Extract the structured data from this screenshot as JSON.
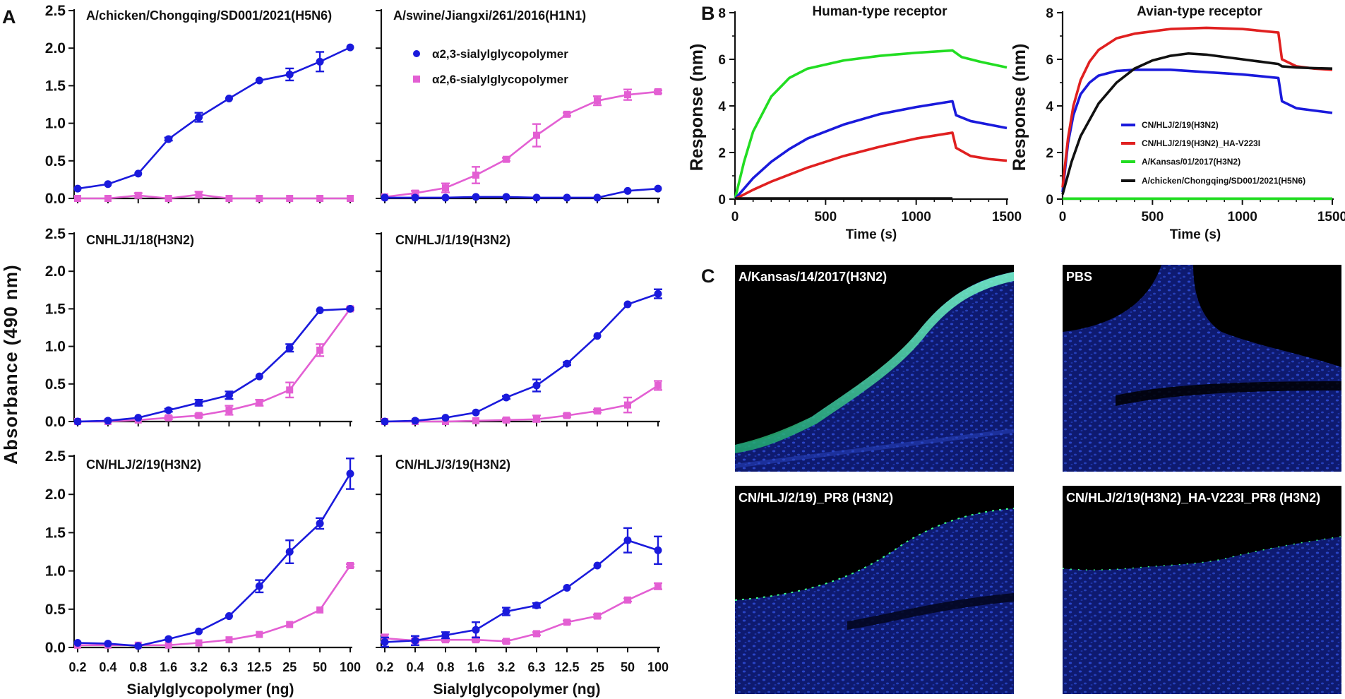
{
  "panel_letters": {
    "a": "A",
    "b": "B",
    "c": "C"
  },
  "chart_data": [
    {
      "type": "line",
      "panel": "A",
      "shared_y_label": "Absorbance (490 nm)",
      "shared_x_label": "Sialylglycopolymer (ng)",
      "x_categories": [
        "0.2",
        "0.4",
        "0.8",
        "1.6",
        "3.2",
        "6.3",
        "12.5",
        "25",
        "50",
        "100"
      ],
      "legend": [
        {
          "name": "α2,3-sialylglycopolymer",
          "color": "#1a1adc",
          "marker": "circle"
        },
        {
          "name": "α2,6-sialylglycopolymer",
          "color": "#e35fd3",
          "marker": "square"
        }
      ],
      "subplots": [
        {
          "title": "A/chicken/Chongqing/SD001/2021(H5N6)",
          "ylim": [
            0,
            2.5
          ],
          "yticks": [
            "0.0",
            "0.5",
            "1.0",
            "1.5",
            "2.0",
            "2.5"
          ],
          "show_x_ticks": false,
          "series": [
            {
              "name": "α2,3-sialylglycopolymer",
              "values": [
                0.13,
                0.19,
                0.33,
                0.79,
                1.08,
                1.33,
                1.57,
                1.65,
                1.82,
                2.01
              ],
              "errors": [
                0.01,
                0.01,
                0.01,
                0.02,
                0.06,
                0.01,
                0.01,
                0.08,
                0.13,
                0.01
              ]
            },
            {
              "name": "α2,6-sialylglycopolymer",
              "values": [
                0.0,
                0.0,
                0.04,
                0.0,
                0.05,
                0.0,
                0.0,
                0.0,
                0.0,
                0.0
              ],
              "errors": [
                0,
                0,
                0.03,
                0,
                0.04,
                0,
                0,
                0,
                0,
                0
              ]
            }
          ]
        },
        {
          "title": "A/swine/Jiangxi/261/2016(H1N1)",
          "ylim": [
            0,
            2.5
          ],
          "show_y_labels": false,
          "show_x_ticks": false,
          "series": [
            {
              "name": "α2,3-sialylglycopolymer",
              "values": [
                0.01,
                0.01,
                0.01,
                0.02,
                0.02,
                0.01,
                0.01,
                0.01,
                0.1,
                0.13
              ],
              "errors": [
                0,
                0,
                0,
                0,
                0,
                0,
                0,
                0,
                0,
                0
              ]
            },
            {
              "name": "α2,6-sialylglycopolymer",
              "values": [
                0.02,
                0.07,
                0.14,
                0.31,
                0.52,
                0.84,
                1.12,
                1.3,
                1.38,
                1.42
              ],
              "errors": [
                0.01,
                0.03,
                0.06,
                0.11,
                0.02,
                0.15,
                0.02,
                0.06,
                0.07,
                0.02
              ]
            }
          ]
        },
        {
          "title": "CNHLJ1/18(H3N2)",
          "ylim": [
            0,
            2.5
          ],
          "yticks": [
            "0.0",
            "0.5",
            "1.0",
            "1.5",
            "2.0",
            "2.5"
          ],
          "show_x_ticks": false,
          "series": [
            {
              "name": "α2,3-sialylglycopolymer",
              "values": [
                0.0,
                0.01,
                0.05,
                0.15,
                0.25,
                0.35,
                0.6,
                0.98,
                1.48,
                1.5
              ],
              "errors": [
                0.01,
                0.01,
                0.01,
                0.02,
                0.04,
                0.05,
                0.01,
                0.05,
                0.01,
                0.01
              ]
            },
            {
              "name": "α2,6-sialylglycopolymer",
              "values": [
                0.0,
                0.0,
                0.02,
                0.05,
                0.08,
                0.15,
                0.25,
                0.42,
                0.95,
                1.5
              ],
              "errors": [
                0,
                0.02,
                0.01,
                0.02,
                0.02,
                0.06,
                0.04,
                0.1,
                0.08,
                0.02
              ]
            }
          ]
        },
        {
          "title": "CN/HLJ/1/19(H3N2)",
          "ylim": [
            0,
            2.5
          ],
          "show_y_labels": false,
          "show_x_ticks": false,
          "series": [
            {
              "name": "α2,3-sialylglycopolymer",
              "values": [
                0.0,
                0.01,
                0.05,
                0.12,
                0.32,
                0.48,
                0.77,
                1.14,
                1.56,
                1.7
              ],
              "errors": [
                0,
                0,
                0.01,
                0.01,
                0.02,
                0.08,
                0.02,
                0.01,
                0.01,
                0.06
              ]
            },
            {
              "name": "α2,6-sialylglycopolymer",
              "values": [
                0.0,
                0.0,
                0.0,
                0.01,
                0.02,
                0.03,
                0.08,
                0.14,
                0.22,
                0.48
              ],
              "errors": [
                0,
                0,
                0,
                0,
                0.02,
                0.05,
                0.02,
                0.02,
                0.1,
                0.06
              ]
            }
          ]
        },
        {
          "title": "CN/HLJ/2/19(H3N2)",
          "ylim": [
            0,
            2.5
          ],
          "yticks": [
            "0.0",
            "0.5",
            "1.0",
            "1.5",
            "2.0",
            "2.5"
          ],
          "show_x_ticks": true,
          "series": [
            {
              "name": "α2,3-sialylglycopolymer",
              "values": [
                0.06,
                0.05,
                0.02,
                0.11,
                0.21,
                0.41,
                0.8,
                1.25,
                1.62,
                2.27
              ],
              "errors": [
                0.01,
                0.01,
                0.01,
                0.01,
                0.01,
                0.01,
                0.08,
                0.15,
                0.07,
                0.2
              ]
            },
            {
              "name": "α2,6-sialylglycopolymer",
              "values": [
                0.03,
                0.03,
                0.03,
                0.03,
                0.06,
                0.1,
                0.17,
                0.3,
                0.49,
                1.07
              ],
              "errors": [
                0,
                0,
                0,
                0,
                0.01,
                0.01,
                0.01,
                0.01,
                0.01,
                0.02
              ]
            }
          ]
        },
        {
          "title": "CN/HLJ/3/19(H3N2)",
          "ylim": [
            0,
            2.5
          ],
          "show_y_labels": false,
          "show_x_ticks": true,
          "series": [
            {
              "name": "α2,3-sialylglycopolymer",
              "values": [
                0.07,
                0.09,
                0.16,
                0.23,
                0.47,
                0.55,
                0.78,
                1.07,
                1.4,
                1.27
              ],
              "errors": [
                0.06,
                0.06,
                0.04,
                0.1,
                0.05,
                0.03,
                0.01,
                0.01,
                0.16,
                0.18
              ]
            },
            {
              "name": "α2,6-sialylglycopolymer",
              "values": [
                0.12,
                0.09,
                0.1,
                0.1,
                0.08,
                0.18,
                0.33,
                0.41,
                0.62,
                0.8
              ],
              "errors": [
                0.05,
                0.02,
                0.02,
                0.02,
                0.02,
                0.02,
                0.02,
                0.02,
                0.02,
                0.04
              ]
            }
          ]
        }
      ]
    },
    {
      "type": "line",
      "panel": "B",
      "title": "Human-type receptor",
      "xlabel": "Time (s)",
      "ylabel": "Response (nm)",
      "xlim": [
        0,
        1500
      ],
      "ylim": [
        0,
        8
      ],
      "xticks": [
        "0",
        "500",
        "1000",
        "1500"
      ],
      "yticks": [
        "0",
        "2",
        "4",
        "6",
        "8"
      ],
      "series": [
        {
          "name": "A/Kansas/01/2017(H3N2)",
          "color": "#22dd22",
          "x": [
            0,
            50,
            100,
            200,
            300,
            400,
            600,
            800,
            1000,
            1200,
            1250,
            1350,
            1500
          ],
          "y": [
            0,
            1.6,
            2.9,
            4.4,
            5.2,
            5.6,
            5.95,
            6.15,
            6.28,
            6.38,
            6.1,
            5.9,
            5.65
          ]
        },
        {
          "name": "CN/HLJ/2/19(H3N2)",
          "color": "#1a1adc",
          "x": [
            0,
            100,
            200,
            300,
            400,
            600,
            800,
            1000,
            1200,
            1220,
            1300,
            1400,
            1500
          ],
          "y": [
            0,
            0.9,
            1.6,
            2.15,
            2.6,
            3.2,
            3.65,
            3.95,
            4.2,
            3.6,
            3.35,
            3.2,
            3.05
          ]
        },
        {
          "name": "CN/HLJ/2/19(H3N2)_HA-V223I",
          "color": "#e02020",
          "x": [
            0,
            100,
            200,
            300,
            400,
            600,
            800,
            1000,
            1200,
            1220,
            1300,
            1400,
            1500
          ],
          "y": [
            0,
            0.4,
            0.75,
            1.05,
            1.35,
            1.85,
            2.25,
            2.6,
            2.85,
            2.2,
            1.85,
            1.72,
            1.65
          ]
        },
        {
          "name": "A/chicken/Chongqing/SD001/2021(H5N6)",
          "color": "#111111",
          "x": [
            0,
            1200
          ],
          "y": [
            0.03,
            0.03
          ]
        }
      ]
    },
    {
      "type": "line",
      "panel": "B",
      "title": "Avian-type receptor",
      "xlabel": "Time (s)",
      "ylabel": "Response (nm)",
      "xlim": [
        0,
        1500
      ],
      "ylim": [
        0,
        8
      ],
      "xticks": [
        "0",
        "500",
        "1000",
        "1500"
      ],
      "yticks": [
        "0",
        "2",
        "4",
        "6",
        "8"
      ],
      "legend": [
        {
          "name": "CN/HLJ/2/19(H3N2)",
          "color": "#1a1adc"
        },
        {
          "name": "CN/HLJ/2/19(H3N2)_HA-V223I",
          "color": "#e02020"
        },
        {
          "name": "A/Kansas/01/2017(H3N2)",
          "color": "#22dd22"
        },
        {
          "name": "A/chicken/Chongqing/SD001/2021(H5N6)",
          "color": "#111111"
        }
      ],
      "series": [
        {
          "name": "CN/HLJ/2/19(H3N2)",
          "color": "#1a1adc",
          "x": [
            0,
            30,
            60,
            100,
            150,
            200,
            300,
            400,
            600,
            800,
            1000,
            1200,
            1220,
            1300,
            1400,
            1500
          ],
          "y": [
            0.3,
            2.4,
            3.6,
            4.5,
            5.0,
            5.3,
            5.5,
            5.55,
            5.55,
            5.45,
            5.35,
            5.2,
            4.2,
            3.9,
            3.8,
            3.7
          ]
        },
        {
          "name": "CN/HLJ/2/19(H3N2)_HA-V223I",
          "color": "#e02020",
          "x": [
            0,
            30,
            60,
            100,
            150,
            200,
            300,
            400,
            600,
            800,
            1000,
            1200,
            1220,
            1300,
            1400,
            1500
          ],
          "y": [
            0.5,
            2.6,
            4.0,
            5.1,
            5.9,
            6.4,
            6.9,
            7.1,
            7.3,
            7.35,
            7.3,
            7.15,
            6.0,
            5.7,
            5.6,
            5.55
          ]
        },
        {
          "name": "A/chicken/Chongqing/SD001/2021(H5N6)",
          "color": "#111111",
          "x": [
            0,
            50,
            100,
            200,
            300,
            400,
            500,
            600,
            700,
            800,
            1000,
            1200,
            1220,
            1300,
            1400,
            1500
          ],
          "y": [
            0.2,
            1.6,
            2.7,
            4.1,
            5.0,
            5.6,
            5.95,
            6.15,
            6.25,
            6.2,
            6.0,
            5.8,
            5.7,
            5.65,
            5.62,
            5.6
          ]
        },
        {
          "name": "A/Kansas/01/2017(H3N2)",
          "color": "#22dd22",
          "x": [
            0,
            1500
          ],
          "y": [
            0.02,
            0.02
          ]
        }
      ]
    }
  ],
  "images": [
    {
      "label": "A/Kansas/14/2017(H3N2)"
    },
    {
      "label": "PBS"
    },
    {
      "label": "CN/HLJ/2/19)_PR8 (H3N2)"
    },
    {
      "label": "CN/HLJ/2/19(H3N2)_HA-V223I_PR8 (H3N2)"
    }
  ],
  "colors": {
    "blue": "#1a1adc",
    "pink": "#e35fd3",
    "red": "#e02020",
    "green": "#22dd22",
    "black": "#111111"
  }
}
